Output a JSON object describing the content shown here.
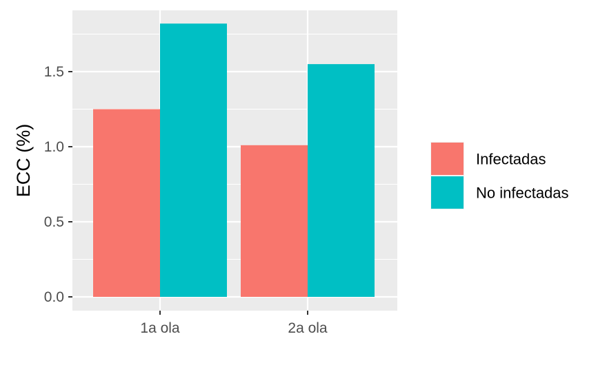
{
  "chart_data": {
    "type": "bar",
    "categories": [
      "1a ola",
      "2a ola"
    ],
    "series": [
      {
        "name": "Infectadas",
        "values": [
          1.25,
          1.01
        ],
        "color": "#F8766D"
      },
      {
        "name": "No infectadas",
        "values": [
          1.82,
          1.55
        ],
        "color": "#00BFC4"
      }
    ],
    "ylabel": "ECC (%)",
    "xlabel": "",
    "ylim": [
      0,
      1.9
    ],
    "yticks": [
      0.0,
      0.5,
      1.0,
      1.5
    ],
    "ytick_labels": [
      "0.0",
      "0.5",
      "1.0",
      "1.5"
    ],
    "grid": true,
    "legend_position": "right",
    "panel_background": "#EBEBEB"
  }
}
